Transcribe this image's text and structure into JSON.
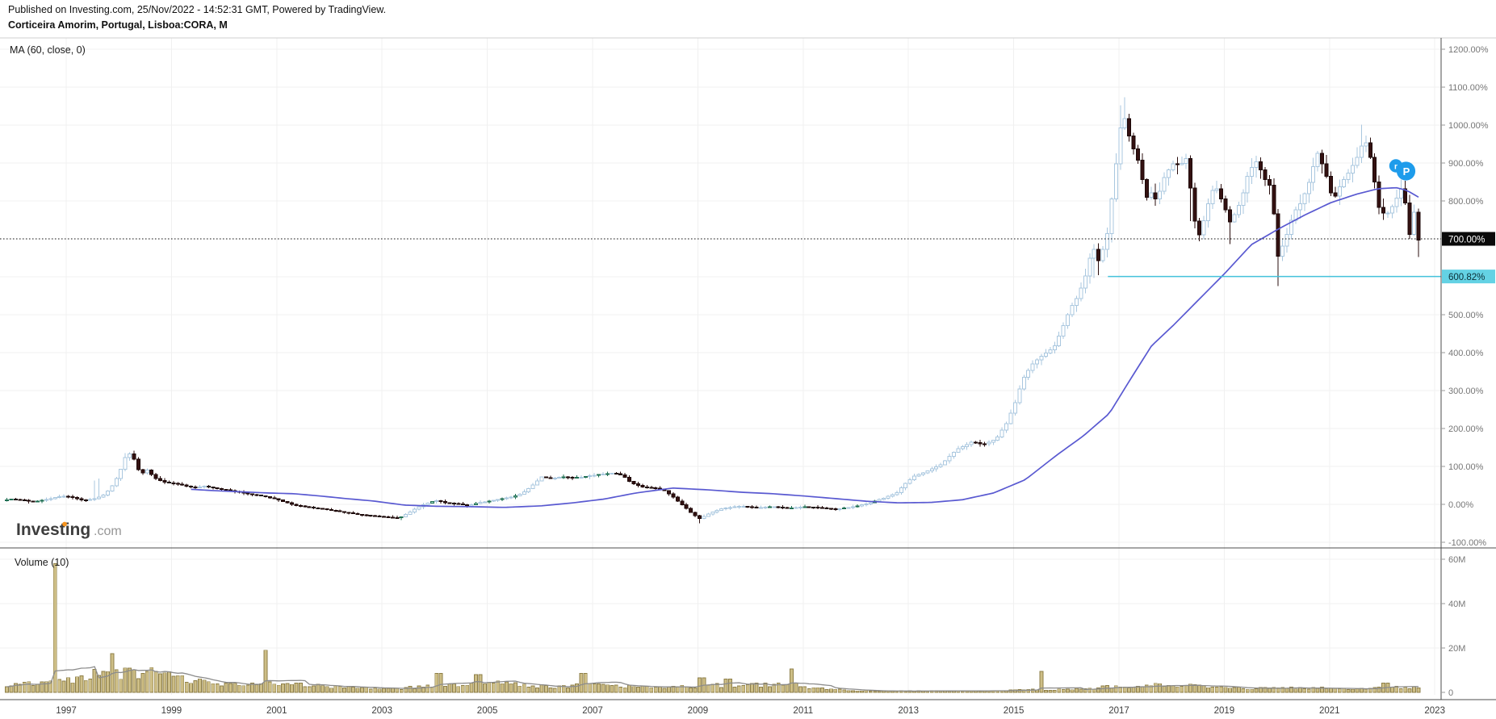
{
  "header": {
    "published_line": "Published on Investing.com, 25/Nov/2022 - 14:52:31 GMT, Powered by TradingView.",
    "instrument_line": "Corticeira Amorim, Portugal, Lisboa:CORA, M"
  },
  "indicators": {
    "price_ma_label": "MA (60, close, 0)",
    "volume_label": "Volume (10)"
  },
  "watermark": {
    "main": "Investing",
    "suffix": ".com",
    "dot_color": "#F7941D"
  },
  "publisher_badge": {
    "small_letter": "r",
    "large_letter": "P",
    "color": "#1E9CEB"
  },
  "axes": {
    "price_ticks": [
      {
        "label": "1200.00%",
        "value": 1200
      },
      {
        "label": "1100.00%",
        "value": 1100
      },
      {
        "label": "1000.00%",
        "value": 1000
      },
      {
        "label": "900.00%",
        "value": 900
      },
      {
        "label": "800.00%",
        "value": 800
      },
      {
        "label": "700.00%",
        "value": 700
      },
      {
        "label": "600.00%",
        "value": 600
      },
      {
        "label": "500.00%",
        "value": 500
      },
      {
        "label": "400.00%",
        "value": 400
      },
      {
        "label": "300.00%",
        "value": 300
      },
      {
        "label": "200.00%",
        "value": 200
      },
      {
        "label": "100.00%",
        "value": 100
      },
      {
        "label": "0.00%",
        "value": 0
      },
      {
        "label": "-100.00%",
        "value": -100
      }
    ],
    "volume_ticks": [
      {
        "label": "60M",
        "value": 60
      },
      {
        "label": "40M",
        "value": 40
      },
      {
        "label": "20M",
        "value": 20
      },
      {
        "label": "0",
        "value": 0
      }
    ],
    "time_ticks": [
      {
        "label": "1997",
        "year": 1997
      },
      {
        "label": "1999",
        "year": 1999
      },
      {
        "label": "2001",
        "year": 2001
      },
      {
        "label": "2003",
        "year": 2003
      },
      {
        "label": "2005",
        "year": 2005
      },
      {
        "label": "2007",
        "year": 2007
      },
      {
        "label": "2009",
        "year": 2009
      },
      {
        "label": "2011",
        "year": 2011
      },
      {
        "label": "2013",
        "year": 2013
      },
      {
        "label": "2015",
        "year": 2015
      },
      {
        "label": "2017",
        "year": 2017
      },
      {
        "label": "2019",
        "year": 2019
      },
      {
        "label": "2021",
        "year": 2021
      },
      {
        "label": "2023",
        "year": 2023
      }
    ],
    "current_price": {
      "label": "700.00%",
      "value": 700,
      "bg": "#0A0A0A",
      "fg": "#FFFFFF"
    },
    "level_line": {
      "label": "600.82%",
      "value": 600.82,
      "start_year": 2016.79,
      "line_color": "#45C2DB",
      "bg": "#64D2E4",
      "fg": "#0B2E36"
    }
  },
  "colors": {
    "up_fill": "#FFFFFF",
    "up_border": "#A9C7DF",
    "up_wick": "#A9C7DF",
    "down_fill": "#341111",
    "down_border": "#1C0808",
    "down_wick": "#2A0D0D",
    "doji_fill": "#9FD8C6",
    "doji_border": "#1E6E52",
    "price_ma": "#5959D1",
    "volume_ma": "#8C8C8C",
    "volume_fill": "#CDBE86",
    "volume_border": "#8E7F48",
    "grid": "#F0F0F0",
    "frame_dark": "#4D4D4D",
    "frame_light": "#CFCFCF",
    "tick": "#9A9A9A",
    "axis_text": "#767676",
    "time_text": "#3C3C3C",
    "dashed_level": "#111111"
  },
  "chart_data": {
    "type": "candlestick+volume",
    "title": "Corticeira Amorim, Portugal, Lisboa:CORA, M  (monthly, % change)",
    "x_range_years": [
      1996.0,
      2023.2
    ],
    "price_axis_range_pct": [
      -100,
      1200
    ],
    "volume_axis_range_millions": [
      0,
      60
    ],
    "months": 323,
    "last_month_year": 2022.875,
    "grid": true,
    "legend_position": "top-left",
    "price_close_keyframes_pct": [
      [
        1995.92,
        8
      ],
      [
        1996.1,
        14
      ],
      [
        1996.3,
        12
      ],
      [
        1996.5,
        7
      ],
      [
        1996.7,
        10
      ],
      [
        1996.9,
        16
      ],
      [
        1997.1,
        22
      ],
      [
        1997.3,
        18
      ],
      [
        1997.5,
        10
      ],
      [
        1997.7,
        14
      ],
      [
        1997.9,
        26
      ],
      [
        1998.08,
        55
      ],
      [
        1998.25,
        105
      ],
      [
        1998.33,
        140
      ],
      [
        1998.45,
        122
      ],
      [
        1998.58,
        78
      ],
      [
        1998.7,
        92
      ],
      [
        1998.85,
        70
      ],
      [
        1999.0,
        60
      ],
      [
        1999.2,
        55
      ],
      [
        1999.4,
        50
      ],
      [
        1999.6,
        44
      ],
      [
        1999.8,
        48
      ],
      [
        2000.0,
        42
      ],
      [
        2000.3,
        36
      ],
      [
        2000.6,
        28
      ],
      [
        2000.9,
        22
      ],
      [
        2001.2,
        12
      ],
      [
        2001.5,
        -2
      ],
      [
        2001.8,
        -8
      ],
      [
        2002.1,
        -13
      ],
      [
        2002.4,
        -20
      ],
      [
        2002.8,
        -28
      ],
      [
        2003.2,
        -33
      ],
      [
        2003.5,
        -36
      ],
      [
        2003.65,
        -25
      ],
      [
        2003.8,
        -12
      ],
      [
        2004.0,
        2
      ],
      [
        2004.2,
        10
      ],
      [
        2004.4,
        4
      ],
      [
        2004.6,
        2
      ],
      [
        2004.8,
        -4
      ],
      [
        2005.0,
        4
      ],
      [
        2005.2,
        8
      ],
      [
        2005.4,
        14
      ],
      [
        2005.6,
        18
      ],
      [
        2005.75,
        24
      ],
      [
        2005.9,
        35
      ],
      [
        2006.05,
        52
      ],
      [
        2006.2,
        72
      ],
      [
        2006.4,
        68
      ],
      [
        2006.6,
        73
      ],
      [
        2006.8,
        70
      ],
      [
        2007.0,
        72
      ],
      [
        2007.2,
        77
      ],
      [
        2007.4,
        80
      ],
      [
        2007.6,
        82
      ],
      [
        2007.75,
        76
      ],
      [
        2007.9,
        58
      ],
      [
        2008.1,
        46
      ],
      [
        2008.3,
        44
      ],
      [
        2008.5,
        40
      ],
      [
        2008.7,
        20
      ],
      [
        2008.9,
        -4
      ],
      [
        2009.05,
        -22
      ],
      [
        2009.2,
        -38
      ],
      [
        2009.4,
        -24
      ],
      [
        2009.6,
        -12
      ],
      [
        2009.8,
        -8
      ],
      [
        2010.0,
        -5
      ],
      [
        2010.3,
        -9
      ],
      [
        2010.6,
        -6
      ],
      [
        2010.9,
        -10
      ],
      [
        2011.2,
        -6
      ],
      [
        2011.5,
        -9
      ],
      [
        2011.8,
        -13
      ],
      [
        2012.1,
        -7
      ],
      [
        2012.4,
        2
      ],
      [
        2012.7,
        16
      ],
      [
        2012.95,
        30
      ],
      [
        2013.1,
        52
      ],
      [
        2013.3,
        75
      ],
      [
        2013.5,
        85
      ],
      [
        2013.8,
        105
      ],
      [
        2014.1,
        145
      ],
      [
        2014.4,
        165
      ],
      [
        2014.6,
        158
      ],
      [
        2014.85,
        172
      ],
      [
        2015.05,
        215
      ],
      [
        2015.2,
        265
      ],
      [
        2015.35,
        330
      ],
      [
        2015.55,
        372
      ],
      [
        2015.75,
        395
      ],
      [
        2015.95,
        415
      ],
      [
        2016.1,
        462
      ],
      [
        2016.25,
        515
      ],
      [
        2016.4,
        548
      ],
      [
        2016.55,
        605
      ],
      [
        2016.68,
        682
      ],
      [
        2016.8,
        640
      ],
      [
        2016.95,
        705
      ],
      [
        2017.1,
        870
      ],
      [
        2017.25,
        1040
      ],
      [
        2017.4,
        958
      ],
      [
        2017.55,
        905
      ],
      [
        2017.7,
        808
      ],
      [
        2017.8,
        822
      ],
      [
        2017.9,
        800
      ],
      [
        2018.05,
        865
      ],
      [
        2018.2,
        898
      ],
      [
        2018.35,
        895
      ],
      [
        2018.48,
        915
      ],
      [
        2018.6,
        758
      ],
      [
        2018.72,
        705
      ],
      [
        2018.85,
        782
      ],
      [
        2019.0,
        845
      ],
      [
        2019.15,
        798
      ],
      [
        2019.3,
        742
      ],
      [
        2019.5,
        800
      ],
      [
        2019.65,
        878
      ],
      [
        2019.8,
        905
      ],
      [
        2019.95,
        858
      ],
      [
        2020.08,
        835
      ],
      [
        2020.2,
        652
      ],
      [
        2020.35,
        700
      ],
      [
        2020.5,
        768
      ],
      [
        2020.65,
        798
      ],
      [
        2020.8,
        852
      ],
      [
        2020.95,
        928
      ],
      [
        2021.1,
        878
      ],
      [
        2021.25,
        800
      ],
      [
        2021.4,
        845
      ],
      [
        2021.55,
        875
      ],
      [
        2021.7,
        912
      ],
      [
        2021.85,
        965
      ],
      [
        2022.0,
        895
      ],
      [
        2022.1,
        788
      ],
      [
        2022.25,
        760
      ],
      [
        2022.4,
        790
      ],
      [
        2022.54,
        833
      ],
      [
        2022.62,
        800
      ],
      [
        2022.71,
        710
      ],
      [
        2022.79,
        772
      ],
      [
        2022.875,
        697
      ]
    ],
    "price_ma60_keyframes_pct": [
      [
        1999.5,
        40
      ],
      [
        2000.0,
        36
      ],
      [
        2000.5,
        33
      ],
      [
        2001.0,
        30
      ],
      [
        2001.5,
        28
      ],
      [
        2002.0,
        22
      ],
      [
        2002.5,
        15
      ],
      [
        2003.0,
        9
      ],
      [
        2003.6,
        -2
      ],
      [
        2004.2,
        -5
      ],
      [
        2004.8,
        -6
      ],
      [
        2005.5,
        -8
      ],
      [
        2006.2,
        -4
      ],
      [
        2006.8,
        4
      ],
      [
        2007.4,
        14
      ],
      [
        2008.0,
        30
      ],
      [
        2008.7,
        43
      ],
      [
        2009.4,
        38
      ],
      [
        2010.0,
        32
      ],
      [
        2010.6,
        28
      ],
      [
        2011.2,
        22
      ],
      [
        2011.8,
        15
      ],
      [
        2012.4,
        8
      ],
      [
        2013.0,
        4
      ],
      [
        2013.6,
        5
      ],
      [
        2014.2,
        12
      ],
      [
        2014.8,
        30
      ],
      [
        2015.4,
        65
      ],
      [
        2016.0,
        130
      ],
      [
        2016.5,
        180
      ],
      [
        2017.0,
        240
      ],
      [
        2017.4,
        330
      ],
      [
        2017.8,
        418
      ],
      [
        2018.2,
        470
      ],
      [
        2018.7,
        540
      ],
      [
        2019.2,
        610
      ],
      [
        2019.7,
        685
      ],
      [
        2020.2,
        725
      ],
      [
        2020.7,
        762
      ],
      [
        2021.2,
        795
      ],
      [
        2021.7,
        818
      ],
      [
        2022.1,
        832
      ],
      [
        2022.45,
        835
      ],
      [
        2022.65,
        828
      ],
      [
        2022.875,
        810
      ]
    ],
    "volume_keyframes_millions": [
      [
        1995.92,
        2
      ],
      [
        1996.3,
        3.5
      ],
      [
        1996.6,
        4.5
      ],
      [
        1996.9,
        4
      ],
      [
        1997.1,
        5
      ],
      [
        1997.4,
        6
      ],
      [
        1997.7,
        8
      ],
      [
        1998.0,
        8
      ],
      [
        1998.3,
        8.5
      ],
      [
        1998.6,
        8.5
      ],
      [
        1998.9,
        9
      ],
      [
        1999.2,
        7
      ],
      [
        1999.6,
        5
      ],
      [
        2000.0,
        4
      ],
      [
        2000.5,
        3.5
      ],
      [
        2001.0,
        4.5
      ],
      [
        2001.4,
        3.5
      ],
      [
        2001.8,
        3
      ],
      [
        2002.2,
        2.5
      ],
      [
        2002.6,
        2.2
      ],
      [
        2003.0,
        1.8
      ],
      [
        2003.5,
        1.6
      ],
      [
        2003.9,
        2.5
      ],
      [
        2004.3,
        4
      ],
      [
        2004.7,
        3
      ],
      [
        2005.1,
        4
      ],
      [
        2005.5,
        4.5
      ],
      [
        2006.0,
        2.8
      ],
      [
        2006.5,
        2.4
      ],
      [
        2007.0,
        3.5
      ],
      [
        2007.5,
        3.2
      ],
      [
        2008.0,
        2.4
      ],
      [
        2008.5,
        2.0
      ],
      [
        2009.0,
        2.6
      ],
      [
        2009.5,
        3.2
      ],
      [
        2010.0,
        3.0
      ],
      [
        2010.5,
        3.4
      ],
      [
        2010.9,
        4
      ],
      [
        2011.3,
        2.2
      ],
      [
        2011.7,
        1.4
      ],
      [
        2012.2,
        0.8
      ],
      [
        2013.0,
        0.6
      ],
      [
        2014.0,
        0.7
      ],
      [
        2015.0,
        0.8
      ],
      [
        2015.5,
        1.2
      ],
      [
        2016.0,
        1.2
      ],
      [
        2016.5,
        1.4
      ],
      [
        2016.9,
        2.4
      ],
      [
        2017.2,
        2.4
      ],
      [
        2017.6,
        3.0
      ],
      [
        2018.0,
        3.6
      ],
      [
        2018.4,
        3.2
      ],
      [
        2018.8,
        2.6
      ],
      [
        2019.2,
        2.2
      ],
      [
        2019.6,
        1.8
      ],
      [
        2020.0,
        1.8
      ],
      [
        2020.3,
        2.6
      ],
      [
        2020.7,
        1.8
      ],
      [
        2021.1,
        1.9
      ],
      [
        2021.5,
        1.5
      ],
      [
        2021.9,
        1.7
      ],
      [
        2022.2,
        3.2
      ],
      [
        2022.5,
        2.4
      ],
      [
        2022.875,
        2.2
      ]
    ],
    "volume_spikes_millions": [
      [
        1996.92,
        58
      ],
      [
        1998.08,
        17.5
      ],
      [
        2000.92,
        19
      ],
      [
        2004.25,
        8.5
      ],
      [
        2005.0,
        8
      ],
      [
        2007.0,
        8.5
      ],
      [
        2009.25,
        6.5
      ],
      [
        2009.75,
        6
      ],
      [
        2010.92,
        10.5
      ],
      [
        2015.67,
        9.5
      ],
      [
        2022.25,
        4.2
      ]
    ],
    "wick_events": [
      [
        1997.75,
        45,
        0
      ],
      [
        1998.33,
        10,
        0
      ],
      [
        2009.17,
        0,
        12
      ],
      [
        2016.75,
        0,
        32
      ],
      [
        2017.25,
        30,
        0
      ],
      [
        2018.58,
        0,
        70
      ],
      [
        2019.33,
        0,
        45
      ],
      [
        2020.17,
        0,
        72
      ],
      [
        2021.83,
        42,
        0
      ],
      [
        2022.875,
        0,
        25
      ]
    ]
  }
}
